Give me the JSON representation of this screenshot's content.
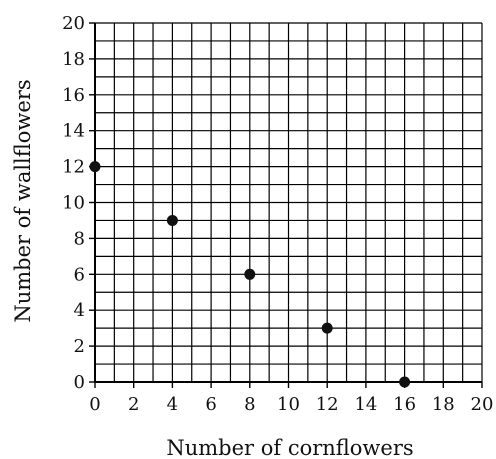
{
  "chart_data": {
    "type": "scatter",
    "title": "",
    "xlabel": "Number of cornflowers",
    "ylabel": "Number of wallflowers",
    "xlim": [
      0,
      20
    ],
    "ylim": [
      0,
      20
    ],
    "grid": true,
    "minor_grid_step": 1,
    "x_ticks": [
      "0",
      "2",
      "4",
      "6",
      "8",
      "10",
      "12",
      "14",
      "16",
      "18",
      "20"
    ],
    "y_ticks": [
      "0",
      "2",
      "4",
      "6",
      "8",
      "10",
      "12",
      "14",
      "16",
      "18",
      "20"
    ],
    "points": [
      {
        "x": 0,
        "y": 12
      },
      {
        "x": 4,
        "y": 9
      },
      {
        "x": 8,
        "y": 6
      },
      {
        "x": 12,
        "y": 3
      },
      {
        "x": 16,
        "y": 0
      }
    ],
    "colors": {
      "grid": "#000000",
      "point": "#111111",
      "text": "#111111"
    }
  }
}
